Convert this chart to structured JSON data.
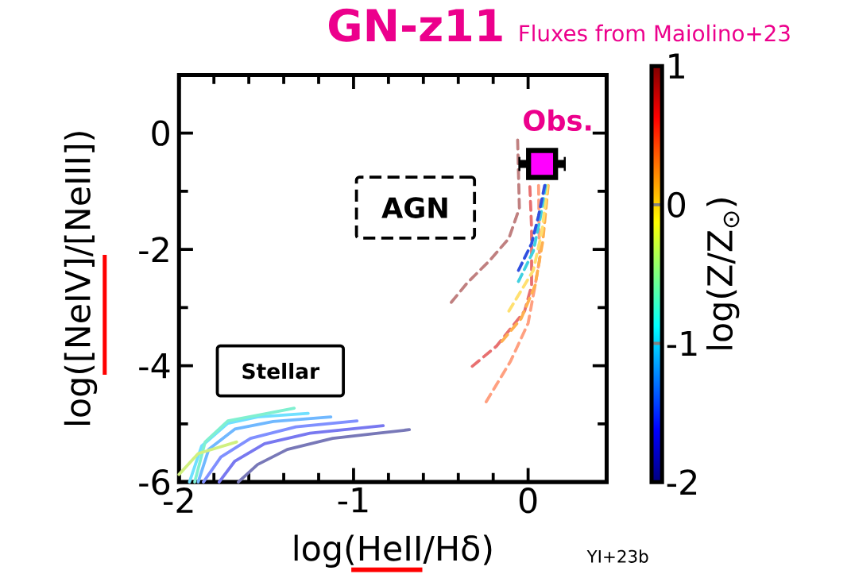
{
  "chart_data": {
    "type": "line",
    "title": "GN-z11",
    "subtitle": "Fluxes from Maiolino+23",
    "xlabel": "log(HeII/Hδ)",
    "ylabel": "log([NeIV]/[NeIII])",
    "clabel": "log(Z/Z$_{⊙}$)",
    "xlim": [
      -2,
      0.45
    ],
    "ylim": [
      -6,
      1
    ],
    "xticks": [
      -2,
      -1,
      0
    ],
    "yticks": [
      -6,
      -4,
      -2,
      0
    ],
    "clim": [
      -2,
      1
    ],
    "cticks": [
      -2,
      -1,
      0,
      1
    ],
    "annotations": [
      "Obs.",
      "AGN",
      "Stellar",
      "YI+23b"
    ],
    "series": [
      {
        "color": "#7878b8",
        "line_style": "solid",
        "x": [
          -1.66,
          -1.55,
          -1.38,
          -1.12,
          -0.86,
          -0.68
        ],
        "values": [
          -6.0,
          -5.7,
          -5.44,
          -5.25,
          -5.16,
          -5.1
        ]
      },
      {
        "color": "#7878f0",
        "line_style": "solid",
        "x": [
          -1.77,
          -1.68,
          -1.51,
          -1.25,
          -0.83
        ],
        "values": [
          -6.0,
          -5.64,
          -5.34,
          -5.16,
          -5.03
        ]
      },
      {
        "color": "#8090ff",
        "line_style": "solid",
        "x": [
          -1.86,
          -1.76,
          -1.59,
          -1.33,
          -0.98
        ],
        "values": [
          -6.0,
          -5.57,
          -5.25,
          -5.05,
          -4.95
        ]
      },
      {
        "color": "#70b8ff",
        "line_style": "solid",
        "x": [
          -1.89,
          -1.83,
          -1.68,
          -1.46,
          -1.13
        ],
        "values": [
          -6.0,
          -5.44,
          -5.09,
          -4.96,
          -4.88
        ]
      },
      {
        "color": "#70e0ff",
        "line_style": "solid",
        "x": [
          -1.94,
          -1.87,
          -1.72,
          -1.55,
          -1.26
        ],
        "values": [
          -6.0,
          -5.38,
          -4.99,
          -4.88,
          -4.82
        ]
      },
      {
        "color": "#80f0d0",
        "line_style": "solid",
        "x": [
          -1.91,
          -1.85,
          -1.72,
          -1.51,
          -1.34
        ],
        "values": [
          -6.0,
          -5.31,
          -4.95,
          -4.83,
          -4.73
        ]
      },
      {
        "color": "#d0f080",
        "line_style": "solid",
        "x": [
          -2.0,
          -1.89,
          -1.67
        ],
        "values": [
          -5.87,
          -5.51,
          -5.31
        ]
      },
      {
        "color": "#c08080",
        "line_style": "dashed",
        "x": [
          -0.06,
          -0.05,
          -0.11,
          -0.22,
          -0.35,
          -0.44
        ],
        "values": [
          -0.12,
          -1.29,
          -1.81,
          -2.19,
          -2.58,
          -2.91
        ]
      },
      {
        "color": "#e87070",
        "line_style": "dashed",
        "x": [
          0.01,
          0.02,
          0.02,
          -0.02,
          -0.18,
          -0.32
        ],
        "values": [
          -0.92,
          -1.64,
          -2.62,
          -3.06,
          -3.66,
          -4.01
        ]
      },
      {
        "color": "#ffa080",
        "line_style": "dashed",
        "x": [
          0.06,
          0.065,
          0.04,
          0.0,
          -0.1,
          -0.24
        ],
        "values": [
          -0.9,
          -2.19,
          -2.62,
          -3.27,
          -3.92,
          -4.62
        ]
      },
      {
        "color": "#ffb050",
        "line_style": "dashed",
        "x": [
          0.115,
          0.085,
          0.04,
          -0.04,
          -0.15
        ],
        "values": [
          -0.9,
          -1.84,
          -2.62,
          -3.19,
          -3.58
        ]
      },
      {
        "color": "#ffe070",
        "line_style": "dashed",
        "x": [
          0.11,
          0.08,
          0.03,
          -0.11
        ],
        "values": [
          -0.9,
          -1.68,
          -2.36,
          -3.06
        ]
      },
      {
        "color": "#40d0e0",
        "line_style": "dashed",
        "x": [
          0.1,
          0.07,
          0.03,
          -0.055
        ],
        "values": [
          -0.9,
          -1.45,
          -2.03,
          -2.55
        ]
      },
      {
        "color": "#3050e0",
        "line_style": "dashed",
        "x": [
          0.095,
          0.06,
          0.02,
          -0.055
        ],
        "values": [
          -0.9,
          -1.42,
          -1.9,
          -2.36
        ]
      },
      {
        "type": "scatter",
        "marker": "square",
        "color": "#ff00ff",
        "x": [
          0.08
        ],
        "values": [
          -0.53
        ],
        "xerrors": [
          0.13
        ]
      }
    ]
  }
}
